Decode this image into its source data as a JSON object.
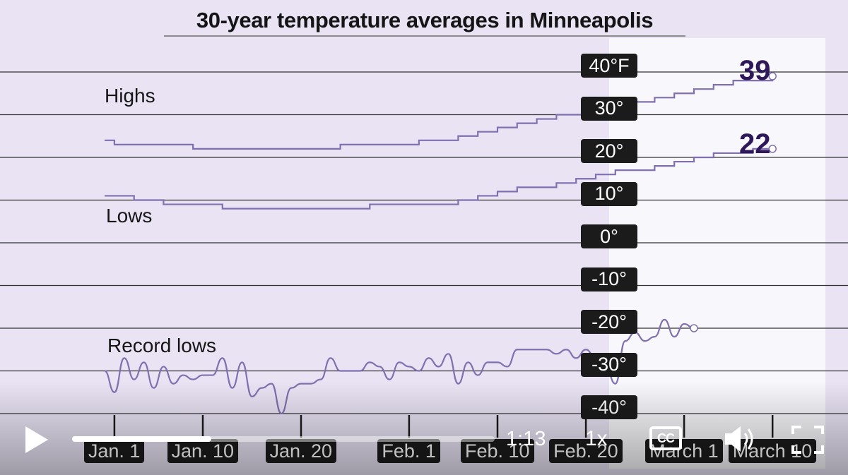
{
  "player": {
    "current_time": "1:13",
    "progress": 0.33,
    "speed": "1x",
    "cc_label": "CC"
  },
  "colors": {
    "background": "#e9e3f4",
    "line": "#8070b0",
    "label_bg": "#1b1b1b",
    "end_label": "#2e1859"
  },
  "icons": [
    "play-icon",
    "cc-icon",
    "volume-icon",
    "fullscreen-icon"
  ],
  "chart_data": {
    "type": "line",
    "title": "30-year temperature averages in Minneapolis",
    "y_ticks": [
      "40°F",
      "30°",
      "20°",
      "10°",
      "0°",
      "-10°",
      "-20°",
      "-30°",
      "-40°"
    ],
    "x_ticks": [
      "Jan. 1",
      "Jan. 10",
      "Jan. 20",
      "Feb. 1",
      "Feb. 10",
      "Feb. 20",
      "March 1",
      "March 10"
    ],
    "ylim": [
      -40,
      40
    ],
    "grid": true,
    "series": [
      {
        "name": "Highs",
        "end_label": "39",
        "points": [
          [
            1,
            24
          ],
          [
            2,
            23
          ],
          [
            4,
            23
          ],
          [
            7,
            23
          ],
          [
            10,
            22
          ],
          [
            13,
            22
          ],
          [
            16,
            22
          ],
          [
            19,
            22
          ],
          [
            22,
            22
          ],
          [
            25,
            23
          ],
          [
            28,
            23
          ],
          [
            31,
            23
          ],
          [
            33,
            24
          ],
          [
            35,
            24
          ],
          [
            37,
            25
          ],
          [
            39,
            26
          ],
          [
            41,
            27
          ],
          [
            43,
            28
          ],
          [
            45,
            29
          ],
          [
            47,
            30
          ],
          [
            49,
            30
          ],
          [
            51,
            31
          ],
          [
            53,
            32
          ],
          [
            55,
            33
          ],
          [
            57,
            34
          ],
          [
            59,
            35
          ],
          [
            61,
            36
          ],
          [
            63,
            37
          ],
          [
            65,
            38
          ],
          [
            67,
            38
          ],
          [
            69,
            39
          ]
        ]
      },
      {
        "name": "Lows",
        "end_label": "22",
        "points": [
          [
            1,
            11
          ],
          [
            2,
            11
          ],
          [
            4,
            10
          ],
          [
            7,
            9
          ],
          [
            10,
            9
          ],
          [
            13,
            8
          ],
          [
            16,
            8
          ],
          [
            19,
            8
          ],
          [
            22,
            8
          ],
          [
            25,
            8
          ],
          [
            28,
            9
          ],
          [
            31,
            9
          ],
          [
            33,
            9
          ],
          [
            35,
            9
          ],
          [
            37,
            10
          ],
          [
            39,
            11
          ],
          [
            41,
            12
          ],
          [
            43,
            13
          ],
          [
            45,
            13
          ],
          [
            47,
            14
          ],
          [
            49,
            15
          ],
          [
            51,
            16
          ],
          [
            53,
            17
          ],
          [
            55,
            17
          ],
          [
            57,
            18
          ],
          [
            59,
            19
          ],
          [
            61,
            20
          ],
          [
            63,
            21
          ],
          [
            65,
            21
          ],
          [
            67,
            22
          ],
          [
            69,
            22
          ]
        ]
      },
      {
        "name": "Record lows",
        "points": [
          [
            1,
            -30
          ],
          [
            2,
            -35
          ],
          [
            3,
            -27
          ],
          [
            4,
            -32
          ],
          [
            5,
            -28
          ],
          [
            6,
            -34
          ],
          [
            7,
            -29
          ],
          [
            8,
            -33
          ],
          [
            9,
            -31
          ],
          [
            10,
            -32
          ],
          [
            11,
            -31
          ],
          [
            12,
            -31
          ],
          [
            13,
            -27
          ],
          [
            14,
            -34
          ],
          [
            15,
            -28
          ],
          [
            16,
            -36
          ],
          [
            17,
            -34
          ],
          [
            18,
            -33
          ],
          [
            19,
            -40
          ],
          [
            20,
            -34
          ],
          [
            21,
            -33
          ],
          [
            22,
            -33
          ],
          [
            23,
            -32
          ],
          [
            24,
            -27
          ],
          [
            25,
            -30
          ],
          [
            26,
            -30
          ],
          [
            27,
            -30
          ],
          [
            28,
            -28
          ],
          [
            29,
            -29
          ],
          [
            30,
            -32
          ],
          [
            31,
            -28
          ],
          [
            32,
            -29
          ],
          [
            33,
            -30
          ],
          [
            34,
            -27
          ],
          [
            35,
            -29
          ],
          [
            36,
            -26
          ],
          [
            37,
            -33
          ],
          [
            38,
            -28
          ],
          [
            39,
            -31
          ],
          [
            40,
            -28
          ],
          [
            41,
            -28
          ],
          [
            42,
            -29
          ],
          [
            43,
            -25
          ],
          [
            44,
            -25
          ],
          [
            45,
            -25
          ],
          [
            46,
            -25
          ],
          [
            47,
            -26
          ],
          [
            48,
            -25
          ],
          [
            49,
            -27
          ],
          [
            50,
            -25
          ],
          [
            51,
            -27
          ],
          [
            52,
            -29
          ],
          [
            53,
            -33
          ],
          [
            54,
            -23
          ],
          [
            55,
            -21
          ],
          [
            56,
            -23
          ],
          [
            57,
            -22
          ],
          [
            58,
            -18
          ],
          [
            59,
            -22
          ],
          [
            60,
            -19
          ],
          [
            61,
            -20
          ]
        ]
      }
    ]
  }
}
